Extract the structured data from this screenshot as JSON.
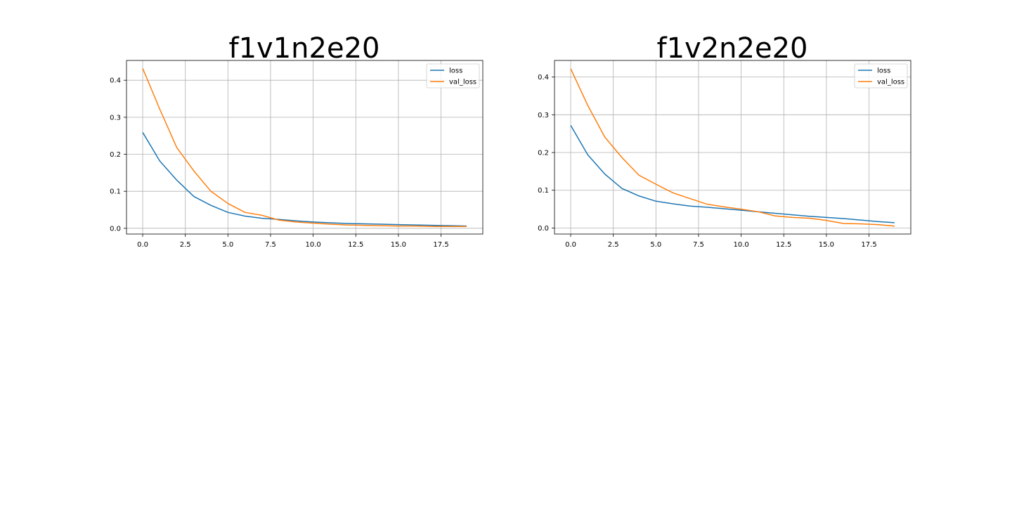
{
  "colors": {
    "loss": "#1f77b4",
    "val_loss": "#ff7f0e",
    "grid": "#b0b0b0",
    "axes": "#000000"
  },
  "chart_data": [
    {
      "type": "line",
      "title": "f1v1n2e20",
      "xlabel": "",
      "ylabel": "",
      "xlim": [
        -0.95,
        19.95
      ],
      "ylim": [
        -0.0155,
        0.4535
      ],
      "x_ticks": [
        0.0,
        2.5,
        5.0,
        7.5,
        10.0,
        12.5,
        15.0,
        17.5
      ],
      "y_ticks": [
        0.0,
        0.1,
        0.2,
        0.3,
        0.4
      ],
      "grid": true,
      "legend_position": "top-right",
      "x": [
        0,
        1,
        2,
        3,
        4,
        5,
        6,
        7,
        8,
        9,
        10,
        11,
        12,
        13,
        14,
        15,
        16,
        17,
        18,
        19
      ],
      "series": [
        {
          "name": "loss",
          "values": [
            0.259,
            0.182,
            0.13,
            0.086,
            0.062,
            0.043,
            0.033,
            0.027,
            0.024,
            0.02,
            0.017,
            0.015,
            0.013,
            0.012,
            0.011,
            0.01,
            0.009,
            0.008,
            0.007,
            0.006
          ]
        },
        {
          "name": "val_loss",
          "values": [
            0.432,
            0.322,
            0.218,
            0.155,
            0.1,
            0.067,
            0.043,
            0.035,
            0.022,
            0.017,
            0.014,
            0.011,
            0.009,
            0.008,
            0.007,
            0.006,
            0.006,
            0.005,
            0.005,
            0.005
          ]
        }
      ]
    },
    {
      "type": "line",
      "title": "f1v2n2e20",
      "xlabel": "",
      "ylabel": "",
      "xlim": [
        -0.95,
        19.95
      ],
      "ylim": [
        -0.016,
        0.444
      ],
      "x_ticks": [
        0.0,
        2.5,
        5.0,
        7.5,
        10.0,
        12.5,
        15.0,
        17.5
      ],
      "y_ticks": [
        0.0,
        0.1,
        0.2,
        0.3,
        0.4
      ],
      "grid": true,
      "legend_position": "top-right",
      "x": [
        0,
        1,
        2,
        3,
        4,
        5,
        6,
        7,
        8,
        9,
        10,
        11,
        12,
        13,
        14,
        15,
        16,
        17,
        18,
        19
      ],
      "series": [
        {
          "name": "loss",
          "values": [
            0.272,
            0.194,
            0.143,
            0.105,
            0.085,
            0.071,
            0.064,
            0.058,
            0.055,
            0.051,
            0.047,
            0.043,
            0.039,
            0.035,
            0.031,
            0.028,
            0.025,
            0.021,
            0.017,
            0.014
          ]
        },
        {
          "name": "val_loss",
          "values": [
            0.422,
            0.325,
            0.241,
            0.187,
            0.14,
            0.116,
            0.093,
            0.078,
            0.063,
            0.056,
            0.05,
            0.043,
            0.032,
            0.028,
            0.026,
            0.02,
            0.012,
            0.011,
            0.009,
            0.005
          ]
        }
      ]
    }
  ]
}
